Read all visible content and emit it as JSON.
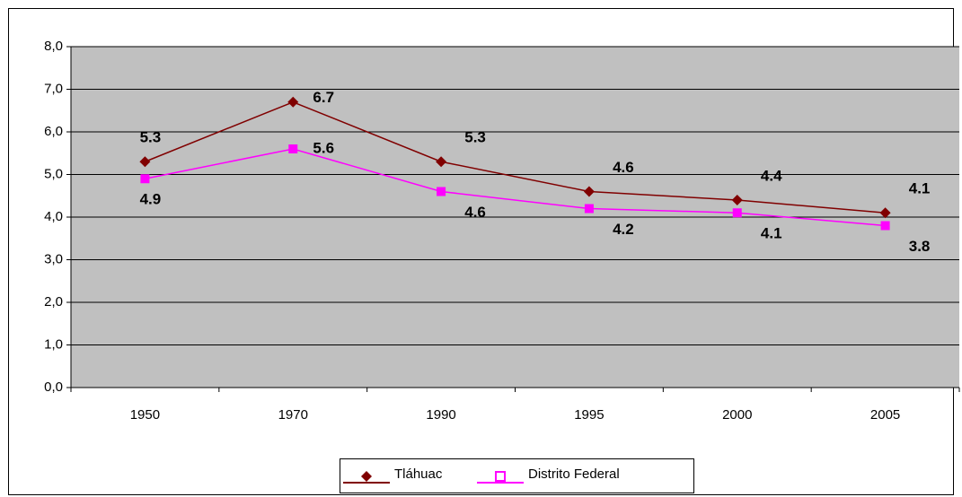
{
  "chart_data": {
    "type": "line",
    "categories": [
      "1950",
      "1970",
      "1990",
      "1995",
      "2000",
      "2005"
    ],
    "series": [
      {
        "name": "Tláhuac",
        "color": "#800000",
        "marker": "diamond",
        "values": [
          5.3,
          6.7,
          5.3,
          4.6,
          4.4,
          4.1
        ]
      },
      {
        "name": "Distrito Federal",
        "color": "#ff00ff",
        "marker": "square",
        "values": [
          4.9,
          5.6,
          4.6,
          4.2,
          4.1,
          3.8
        ]
      }
    ],
    "ylim": [
      0,
      8
    ],
    "yticks": [
      {
        "value": 0,
        "label": "0,0"
      },
      {
        "value": 1,
        "label": "1,0"
      },
      {
        "value": 2,
        "label": "2,0"
      },
      {
        "value": 3,
        "label": "3,0"
      },
      {
        "value": 4,
        "label": "4,0"
      },
      {
        "value": 5,
        "label": "5,0"
      },
      {
        "value": 6,
        "label": "6,0"
      },
      {
        "value": 7,
        "label": "7,0"
      },
      {
        "value": 8,
        "label": "8,0"
      }
    ],
    "grid": true,
    "legend": "bottom",
    "plot_background": "#c0c0c0"
  }
}
